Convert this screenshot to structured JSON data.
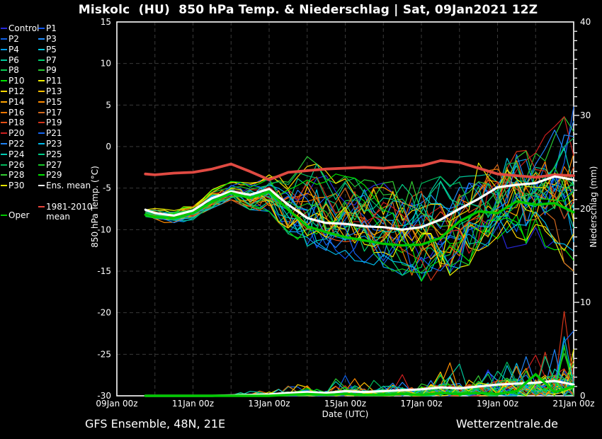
{
  "chart_data": {
    "type": "line",
    "title": "Miskolc  (HU)  850 hPa Temp. & Niederschlag | Sat, 09Jan2021 12Z",
    "x_axis": {
      "label": "Date (UTC)",
      "tick_labels": [
        "09Jan 00z",
        "11Jan 00z",
        "13Jan 00z",
        "15Jan 00z",
        "17Jan 00z",
        "19Jan 00z",
        "21Jan 00z"
      ],
      "tick_hours": [
        0,
        48,
        96,
        144,
        192,
        240,
        288
      ],
      "total_hours": 288,
      "grid_step_hours": 24,
      "data_start_hour": 18,
      "data_step_hours": 6
    },
    "y_left": {
      "label": "850 hPa Temp. (°C)",
      "min": -30,
      "max": 15,
      "tick_step": 5,
      "tick_labels": [
        "15",
        "10",
        "5",
        "0",
        "-5",
        "-10",
        "-15",
        "-20",
        "-25",
        "-30"
      ]
    },
    "y_right": {
      "label": "Niederschlag (mm)",
      "min": 0,
      "max": 40,
      "tick_step": 10,
      "tick_labels": [
        "40",
        "30",
        "20",
        "10",
        "0"
      ]
    },
    "grid": true,
    "legend_position": "left",
    "knot_hours": [
      18,
      24,
      36,
      48,
      60,
      72,
      84,
      96,
      108,
      120,
      132,
      144,
      156,
      168,
      180,
      192,
      204,
      216,
      228,
      240,
      252,
      264,
      276,
      288
    ],
    "series": {
      "ens_mean_temp": {
        "name": "Ens. mean",
        "color": "#ffffff",
        "width": 3.2,
        "values": [
          -7.6,
          -8.0,
          -8.3,
          -7.7,
          -6.2,
          -5.4,
          -5.8,
          -5.1,
          -7.0,
          -8.6,
          -9.2,
          -9.3,
          -9.6,
          -9.7,
          -10.0,
          -9.7,
          -8.8,
          -7.5,
          -6.3,
          -4.9,
          -4.6,
          -4.4,
          -3.6,
          -4.0
        ]
      },
      "oper_temp": {
        "name": "Oper",
        "color": "#00c800",
        "width": 3.4,
        "values": [
          -8.2,
          -8.5,
          -8.6,
          -8.0,
          -6.6,
          -5.6,
          -6.2,
          -5.4,
          -7.6,
          -9.6,
          -10.3,
          -10.9,
          -11.3,
          -11.7,
          -11.9,
          -11.8,
          -11.0,
          -9.0,
          -7.8,
          -8.0,
          -6.6,
          -7.0,
          -6.8,
          -7.9
        ]
      },
      "climate_mean_temp": {
        "name": "1981-2010 mean",
        "color": "#e04a42",
        "width": 3.8,
        "values": [
          -3.3,
          -3.4,
          -3.2,
          -3.1,
          -2.7,
          -2.1,
          -3.0,
          -4.0,
          -3.1,
          -2.9,
          -2.7,
          -2.6,
          -2.5,
          -2.6,
          -2.4,
          -2.3,
          -1.7,
          -1.9,
          -2.6,
          -3.3,
          -3.5,
          -3.7,
          -3.4,
          -3.5
        ]
      },
      "ens_mean_precip": {
        "name": "Ens. mean precip",
        "color": "#ffffff",
        "width": 3.2,
        "values": [
          0,
          0,
          0,
          0,
          0,
          0.05,
          0.1,
          0.15,
          0.3,
          0.4,
          0.3,
          0.5,
          0.4,
          0.5,
          0.6,
          0.7,
          0.9,
          0.8,
          1.0,
          1.2,
          1.3,
          1.4,
          1.6,
          1.2
        ]
      },
      "oper_precip": {
        "name": "Oper precip",
        "color": "#00c800",
        "width": 3.4,
        "values": [
          0,
          0,
          0,
          0,
          0,
          0,
          0,
          0,
          0.1,
          0.2,
          0.1,
          0.2,
          0.1,
          0.1,
          0.2,
          0.1,
          0.3,
          0.2,
          0.3,
          0.2,
          0.5,
          2.3,
          0.4,
          1.0
        ]
      }
    },
    "ensemble_envelope_temp": {
      "lower": [
        -8.6,
        -9.0,
        -9.3,
        -8.8,
        -7.4,
        -6.4,
        -7.6,
        -7.8,
        -10.5,
        -12.0,
        -12.5,
        -13.5,
        -14.0,
        -14.5,
        -15.5,
        -16.2,
        -16.0,
        -15.0,
        -13.5,
        -12.5,
        -12.0,
        -11.5,
        -13.0,
        -15.0
      ],
      "upper": [
        -7.2,
        -7.4,
        -7.6,
        -6.9,
        -5.2,
        -4.2,
        -4.4,
        -3.4,
        -3.6,
        -1.2,
        -3.0,
        -3.6,
        -4.0,
        -4.4,
        -4.0,
        -4.4,
        -3.6,
        -2.6,
        -1.6,
        -0.6,
        1.4,
        0.6,
        2.4,
        4.8
      ]
    },
    "ensemble_precip_max": [
      0,
      0,
      0,
      0,
      0,
      0.2,
      0.5,
      0.8,
      1.8,
      2.2,
      1.2,
      2.5,
      1.6,
      2.2,
      2.6,
      3.2,
      5.0,
      3.5,
      4.5,
      6.0,
      6.5,
      4.5,
      12.5,
      9.0
    ],
    "members": [
      {
        "label": "Control",
        "color": "#2828dc"
      },
      {
        "label": "P1",
        "color": "#0f55f0"
      },
      {
        "label": "P2",
        "color": "#1060e8"
      },
      {
        "label": "P3",
        "color": "#1e8cff"
      },
      {
        "label": "P4",
        "color": "#00a0f0"
      },
      {
        "label": "P5",
        "color": "#00c8dc"
      },
      {
        "label": "P6",
        "color": "#00c89b"
      },
      {
        "label": "P7",
        "color": "#00d26e"
      },
      {
        "label": "P8",
        "color": "#0ac850"
      },
      {
        "label": "P9",
        "color": "#28c832"
      },
      {
        "label": "P10",
        "color": "#00e400"
      },
      {
        "label": "P11",
        "color": "#f0f000"
      },
      {
        "label": "P12",
        "color": "#ffd800"
      },
      {
        "label": "P13",
        "color": "#ffbe00"
      },
      {
        "label": "P14",
        "color": "#ffa500"
      },
      {
        "label": "P15",
        "color": "#ff8c00"
      },
      {
        "label": "P16",
        "color": "#ee7700"
      },
      {
        "label": "P17",
        "color": "#d2691e"
      },
      {
        "label": "P18",
        "color": "#e65014"
      },
      {
        "label": "P19",
        "color": "#d33419"
      },
      {
        "label": "P20",
        "color": "#cd1f1f"
      },
      {
        "label": "P21",
        "color": "#1464f0"
      },
      {
        "label": "P22",
        "color": "#1e82f5"
      },
      {
        "label": "P23",
        "color": "#00b9e8"
      },
      {
        "label": "P24",
        "color": "#00cdb4"
      },
      {
        "label": "P25",
        "color": "#00cd87"
      },
      {
        "label": "P26",
        "color": "#00b85a"
      },
      {
        "label": "P27",
        "color": "#16c828"
      },
      {
        "label": "P28",
        "color": "#32cd32"
      },
      {
        "label": "P29",
        "color": "#00e400"
      },
      {
        "label": "P30",
        "color": "#e6e600"
      }
    ]
  },
  "legend": {
    "special": [
      {
        "id": "ens-mean",
        "label": "Ens. mean",
        "color": "#ffffff"
      },
      {
        "id": "climate-mean",
        "label": "1981-2010\nmean",
        "color": "#e8453c"
      },
      {
        "id": "oper",
        "label": "Oper",
        "color": "#00c800"
      }
    ]
  },
  "footer": {
    "left": "GFS Ensemble, 48N, 21E",
    "right": "Wetterzentrale.de"
  },
  "colors": {
    "background": "#000000",
    "frame": "#ffffff",
    "grid": "#3a3a3a",
    "text": "#ffffff"
  }
}
